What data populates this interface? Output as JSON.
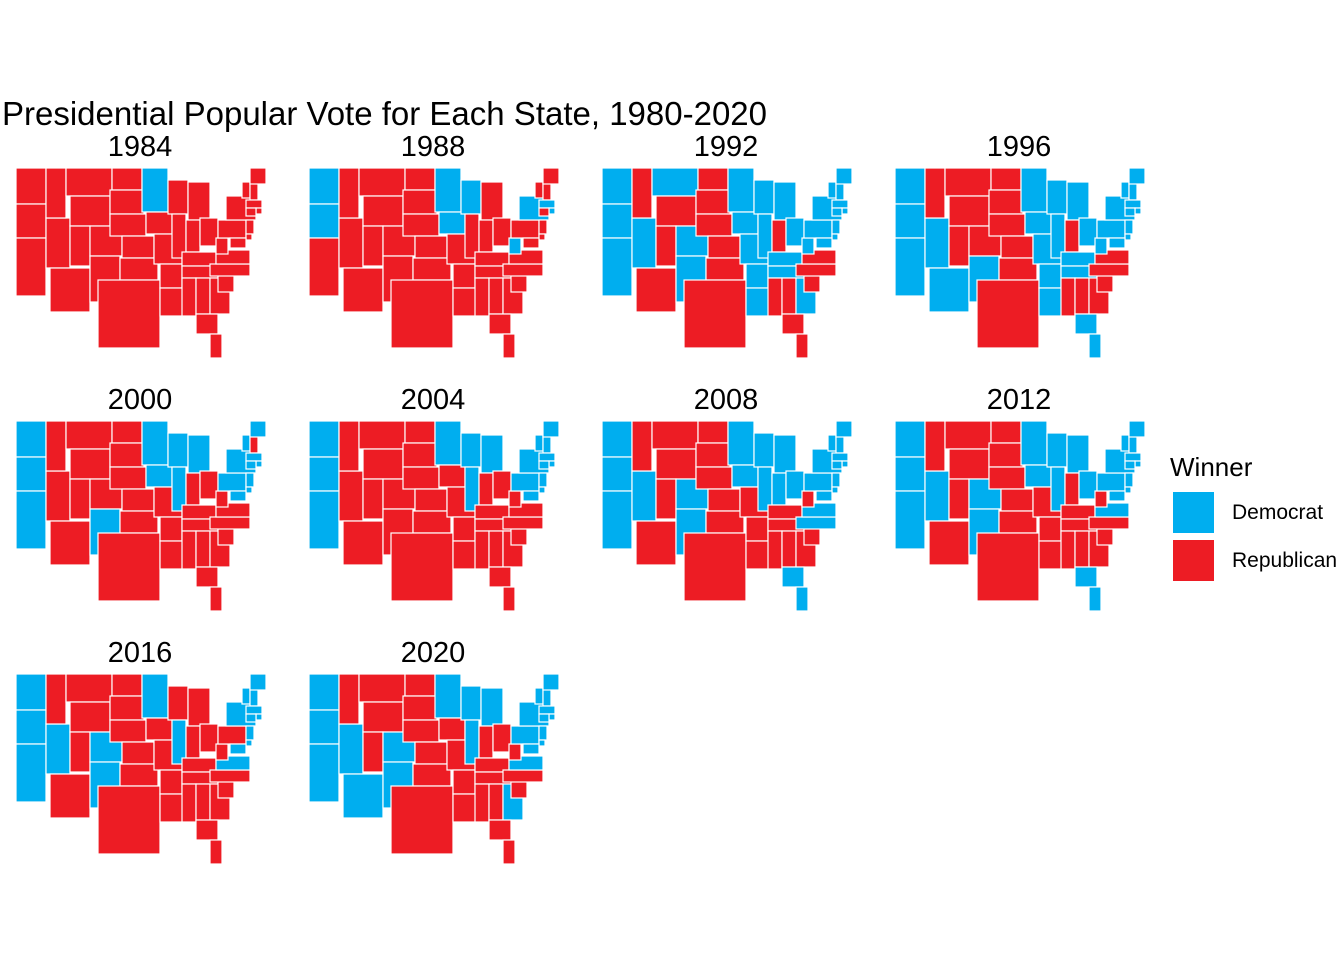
{
  "title": "Presidential Popular Vote for Each State, 1980-2020",
  "legend": {
    "title": "Winner",
    "items": [
      {
        "label": "Democrat",
        "color": "#00AEEF"
      },
      {
        "label": "Republican",
        "color": "#ED1C24"
      }
    ]
  },
  "colors": {
    "Democrat": "#00AEEF",
    "Republican": "#ED1C24",
    "border": "#ffffff"
  },
  "panels": [
    {
      "year": "1984",
      "dem": [
        "MN",
        "DC"
      ]
    },
    {
      "year": "1988",
      "dem": [
        "WA",
        "OR",
        "MN",
        "WI",
        "IA",
        "NY",
        "MA",
        "RI",
        "WV",
        "HI",
        "DC"
      ]
    },
    {
      "year": "1992",
      "dem": [
        "WA",
        "OR",
        "CA",
        "NV",
        "MT",
        "CO",
        "NM",
        "MN",
        "IA",
        "MO",
        "AR",
        "LA",
        "WI",
        "IL",
        "MI",
        "OH",
        "KY",
        "TN",
        "WV",
        "GA",
        "PA",
        "NY",
        "VT",
        "NH",
        "ME",
        "MA",
        "RI",
        "CT",
        "NJ",
        "DE",
        "MD",
        "DC",
        "HI"
      ]
    },
    {
      "year": "1996",
      "dem": [
        "WA",
        "OR",
        "CA",
        "NV",
        "AZ",
        "NM",
        "MN",
        "IA",
        "MO",
        "AR",
        "LA",
        "WI",
        "IL",
        "MI",
        "OH",
        "KY",
        "TN",
        "WV",
        "FL",
        "PA",
        "NY",
        "VT",
        "NH",
        "ME",
        "MA",
        "RI",
        "CT",
        "NJ",
        "DE",
        "MD",
        "DC",
        "HI"
      ]
    },
    {
      "year": "2000",
      "dem": [
        "WA",
        "OR",
        "CA",
        "NM",
        "MN",
        "IA",
        "WI",
        "IL",
        "MI",
        "PA",
        "NY",
        "VT",
        "ME",
        "MA",
        "RI",
        "CT",
        "NJ",
        "DE",
        "MD",
        "DC",
        "HI"
      ]
    },
    {
      "year": "2004",
      "dem": [
        "WA",
        "OR",
        "CA",
        "MN",
        "WI",
        "IL",
        "MI",
        "PA",
        "NY",
        "VT",
        "NH",
        "ME",
        "MA",
        "RI",
        "CT",
        "NJ",
        "DE",
        "MD",
        "DC",
        "HI"
      ]
    },
    {
      "year": "2008",
      "dem": [
        "WA",
        "OR",
        "CA",
        "NV",
        "CO",
        "NM",
        "MN",
        "IA",
        "WI",
        "IL",
        "MI",
        "IN",
        "OH",
        "PA",
        "NY",
        "VT",
        "NH",
        "ME",
        "MA",
        "RI",
        "CT",
        "NJ",
        "DE",
        "MD",
        "DC",
        "VA",
        "NC",
        "FL",
        "HI"
      ]
    },
    {
      "year": "2012",
      "dem": [
        "WA",
        "OR",
        "CA",
        "NV",
        "CO",
        "NM",
        "MN",
        "IA",
        "WI",
        "IL",
        "MI",
        "OH",
        "PA",
        "NY",
        "VT",
        "NH",
        "ME",
        "MA",
        "RI",
        "CT",
        "NJ",
        "DE",
        "MD",
        "DC",
        "VA",
        "FL",
        "HI"
      ]
    },
    {
      "year": "2016",
      "dem": [
        "WA",
        "OR",
        "CA",
        "NV",
        "CO",
        "NM",
        "MN",
        "IL",
        "VA",
        "NY",
        "VT",
        "NH",
        "ME",
        "MA",
        "RI",
        "CT",
        "NJ",
        "DE",
        "MD",
        "DC",
        "HI"
      ]
    },
    {
      "year": "2020",
      "dem": [
        "WA",
        "OR",
        "CA",
        "NV",
        "AZ",
        "CO",
        "NM",
        "MN",
        "WI",
        "IL",
        "MI",
        "PA",
        "GA",
        "VA",
        "NY",
        "VT",
        "NH",
        "ME",
        "MA",
        "RI",
        "CT",
        "NJ",
        "DE",
        "MD",
        "DC",
        "HI"
      ]
    }
  ]
}
